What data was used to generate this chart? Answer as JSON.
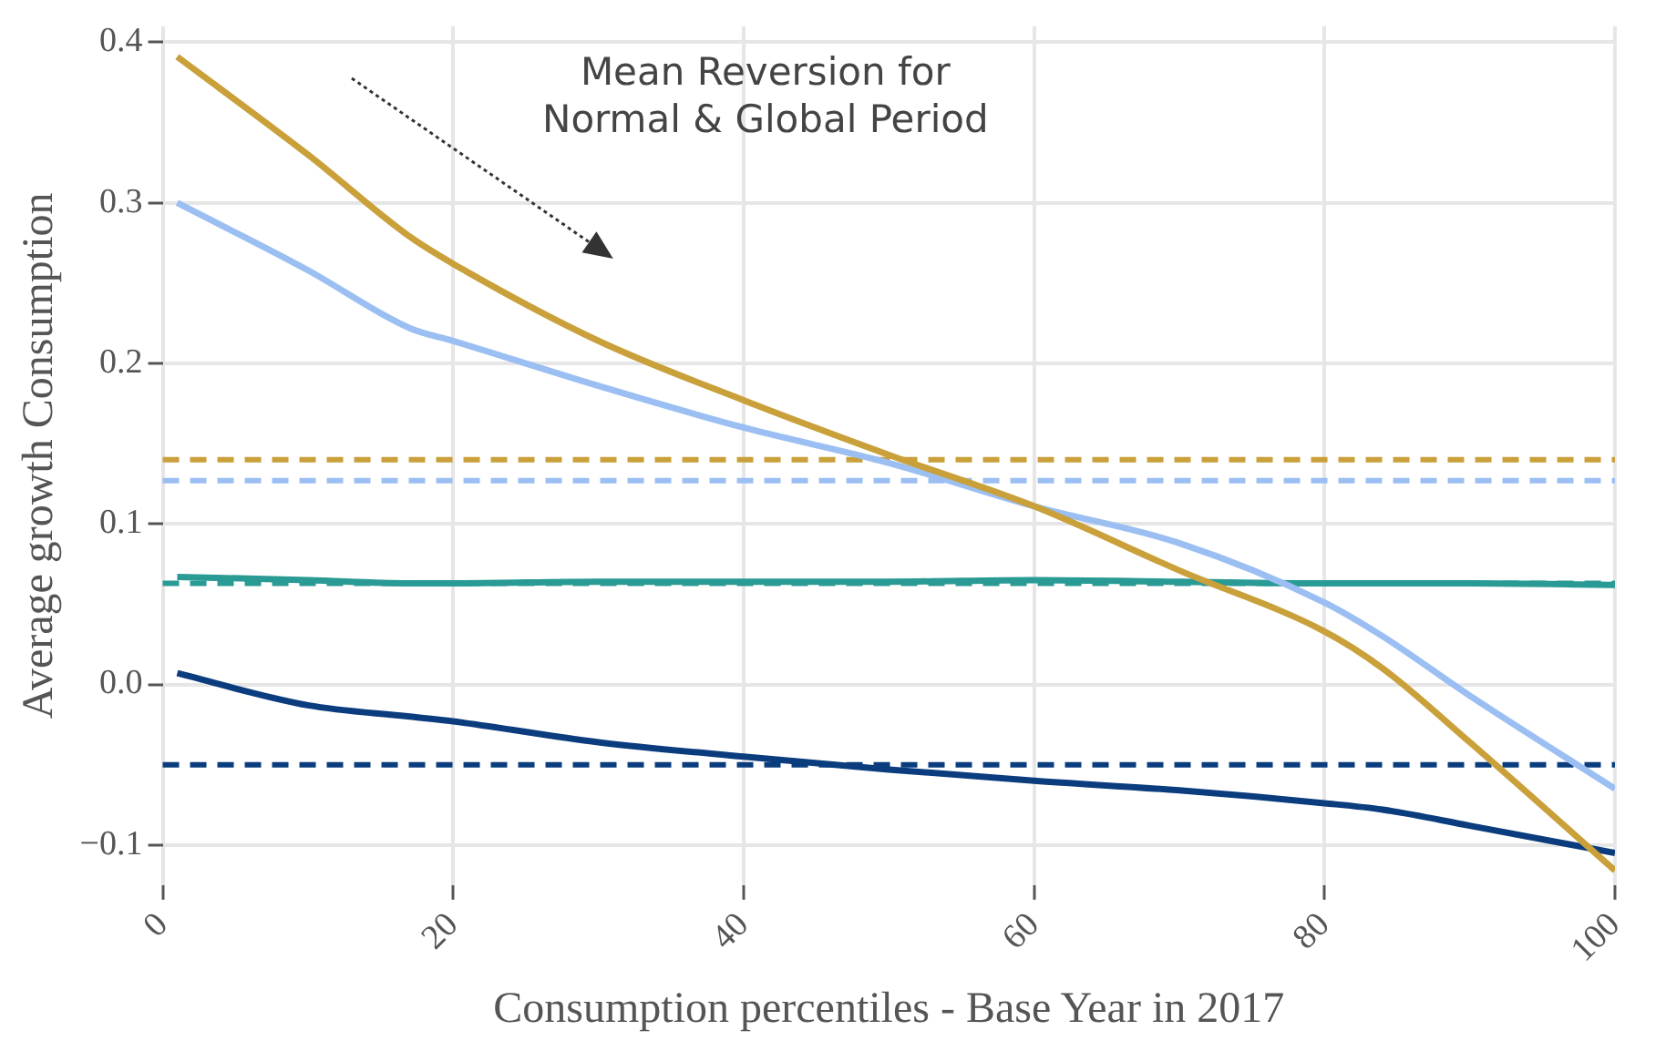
{
  "chart_data": {
    "type": "line",
    "xlabel": "Consumption percentiles - Base Year in 2017",
    "ylabel": "Average growth Consumption",
    "annotations": [
      "Mean Reversion for\nNormal & Global Period"
    ],
    "x": [
      1,
      10,
      17,
      20,
      30,
      40,
      50,
      60,
      70,
      80,
      84,
      90,
      100
    ],
    "series": [
      {
        "color": "#c9a03a",
        "values": [
          0.391,
          0.33,
          0.279,
          0.262,
          0.214,
          0.177,
          0.143,
          0.111,
          0.071,
          0.033,
          0.01,
          -0.036,
          -0.116
        ]
      },
      {
        "color": "#9bbff2",
        "values": [
          0.3,
          0.258,
          0.222,
          0.214,
          0.186,
          0.16,
          0.138,
          0.111,
          0.088,
          0.051,
          0.03,
          -0.007,
          -0.065
        ]
      },
      {
        "color": "#2a9a94",
        "values": [
          0.067,
          0.065,
          0.063,
          0.063,
          0.064,
          0.064,
          0.064,
          0.065,
          0.064,
          0.063,
          0.063,
          0.063,
          0.062
        ]
      },
      {
        "color": "#0b3d7e",
        "values": [
          0.007,
          -0.013,
          -0.02,
          -0.023,
          -0.036,
          -0.045,
          -0.053,
          -0.06,
          -0.066,
          -0.074,
          -0.078,
          -0.088,
          -0.105
        ]
      }
    ],
    "ref_lines": [
      {
        "axis": "y",
        "value": 0.14,
        "color": "#c9a03a",
        "line_style": "dashed"
      },
      {
        "axis": "y",
        "value": 0.127,
        "color": "#9bbff2",
        "line_style": "dashed"
      },
      {
        "axis": "y",
        "value": 0.063,
        "color": "#2a9a94",
        "line_style": "dashed"
      },
      {
        "axis": "y",
        "value": -0.05,
        "color": "#0b3d7e",
        "line_style": "dashed"
      }
    ],
    "xlim": [
      0,
      100
    ],
    "xticks": [
      0,
      20,
      40,
      60,
      80,
      100
    ],
    "ylim": [
      -0.125,
      0.41
    ],
    "yticks": [
      {
        "value": -0.1,
        "label": "−0.1"
      },
      {
        "value": 0,
        "label": "0.0"
      },
      {
        "value": 0.1,
        "label": "0.1"
      },
      {
        "value": 0.2,
        "label": "0.2"
      },
      {
        "value": 0.3,
        "label": "0.3"
      },
      {
        "value": 0.4,
        "label": "0.4"
      }
    ],
    "grid": true,
    "legend": false,
    "marker": "none",
    "line_style": "solid"
  }
}
